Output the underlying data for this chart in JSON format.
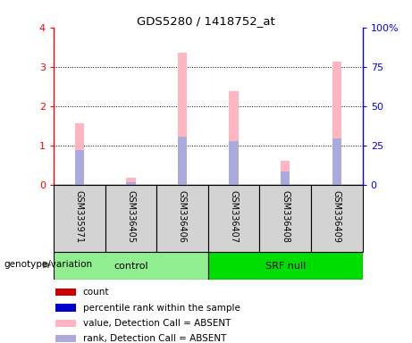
{
  "title": "GDS5280 / 1418752_at",
  "samples": [
    "GSM335971",
    "GSM336405",
    "GSM336406",
    "GSM336407",
    "GSM336408",
    "GSM336409"
  ],
  "group_colors": [
    "#90EE90",
    "#00CC00"
  ],
  "bar_color_absent": "#FFB6C1",
  "rank_color_absent": "#AAAADD",
  "ylim_left": [
    0,
    4
  ],
  "ylim_right": [
    0,
    100
  ],
  "yticks_left": [
    0,
    1,
    2,
    3,
    4
  ],
  "yticks_right": [
    0,
    25,
    50,
    75,
    100
  ],
  "yticklabels_right": [
    "0",
    "25",
    "50",
    "75",
    "100%"
  ],
  "absent_values": [
    1.57,
    0.18,
    3.35,
    2.38,
    0.62,
    3.14
  ],
  "absent_ranks": [
    0.88,
    0.07,
    1.22,
    1.12,
    0.35,
    1.18
  ],
  "bg_color": "#D3D3D3",
  "legend_items": [
    {
      "label": "count",
      "color": "#CC0000"
    },
    {
      "label": "percentile rank within the sample",
      "color": "#0000CC"
    },
    {
      "label": "value, Detection Call = ABSENT",
      "color": "#FFB6C1"
    },
    {
      "label": "rank, Detection Call = ABSENT",
      "color": "#AAAADD"
    }
  ]
}
